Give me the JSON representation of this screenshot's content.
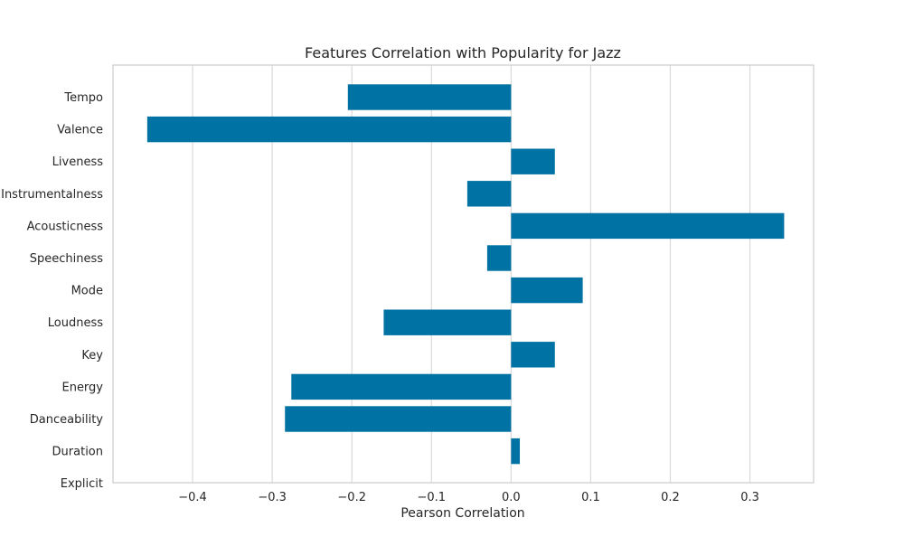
{
  "chart_data": {
    "type": "bar",
    "orientation": "horizontal",
    "title": "Features Correlation with Popularity for Jazz",
    "xlabel": "Pearson Correlation",
    "ylabel": "",
    "xlim": [
      -0.5,
      0.38
    ],
    "xticks": [
      -0.4,
      -0.3,
      -0.2,
      -0.1,
      0.0,
      0.1,
      0.2,
      0.3
    ],
    "xtick_labels": [
      "−0.4",
      "−0.3",
      "−0.2",
      "−0.1",
      "0.0",
      "0.1",
      "0.2",
      "0.3"
    ],
    "grid": true,
    "bar_color": "#0072a3",
    "categories": [
      "Tempo",
      "Valence",
      "Liveness",
      "Instrumentalness",
      "Acousticness",
      "Speechiness",
      "Mode",
      "Loudness",
      "Key",
      "Energy",
      "Danceability",
      "Duration",
      "Explicit"
    ],
    "values": [
      -0.205,
      -0.457,
      0.055,
      -0.055,
      0.343,
      -0.03,
      0.09,
      -0.16,
      0.055,
      -0.276,
      -0.284,
      0.011,
      0.0
    ]
  }
}
